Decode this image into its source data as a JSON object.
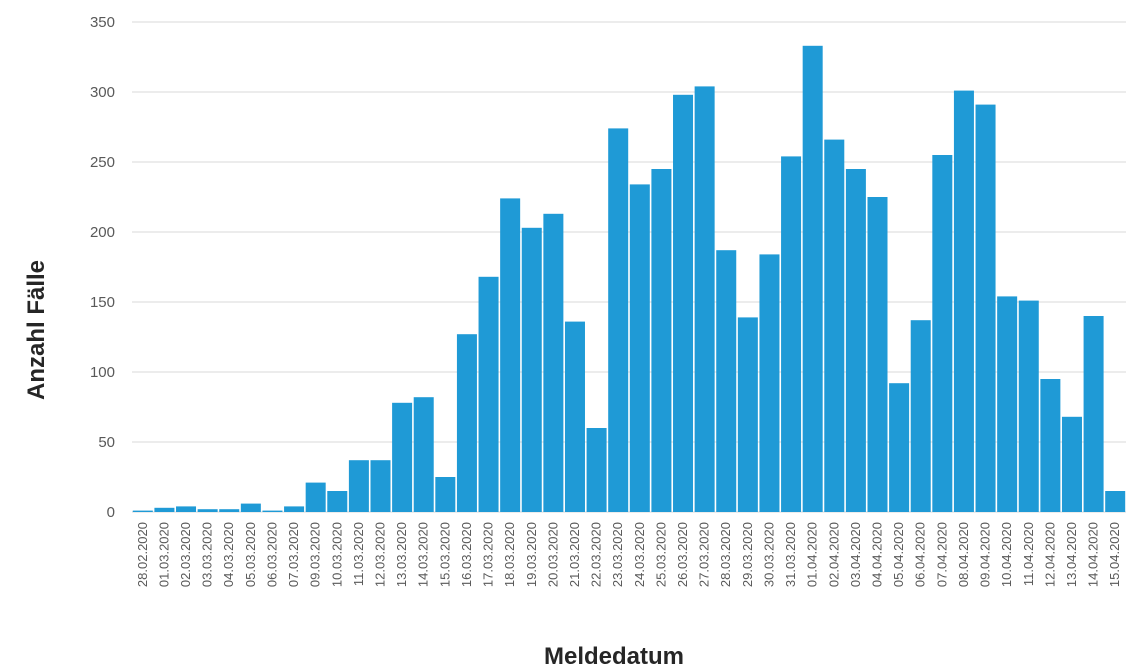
{
  "chart_data": {
    "type": "bar",
    "title": "",
    "xlabel": "Meldedatum",
    "ylabel": "Anzahl Fälle",
    "ylim": [
      0,
      350
    ],
    "yticks": [
      "0",
      "50",
      "100",
      "150",
      "200",
      "250",
      "300",
      "350"
    ],
    "grid": true,
    "bar_color": "#1f9ad6",
    "categories": [
      "28.02.2020",
      "01.03.2020",
      "02.03.2020",
      "03.03.2020",
      "04.03.2020",
      "05.03.2020",
      "06.03.2020",
      "07.03.2020",
      "09.03.2020",
      "10.03.2020",
      "11.03.2020",
      "12.03.2020",
      "13.03.2020",
      "14.03.2020",
      "15.03.2020",
      "16.03.2020",
      "17.03.2020",
      "18.03.2020",
      "19.03.2020",
      "20.03.2020",
      "21.03.2020",
      "22.03.2020",
      "23.03.2020",
      "24.03.2020",
      "25.03.2020",
      "26.03.2020",
      "27.03.2020",
      "28.03.2020",
      "29.03.2020",
      "30.03.2020",
      "31.03.2020",
      "01.04.2020",
      "02.04.2020",
      "03.04.2020",
      "04.04.2020",
      "05.04.2020",
      "06.04.2020",
      "07.04.2020",
      "08.04.2020",
      "09.04.2020",
      "10.04.2020",
      "11.04.2020",
      "12.04.2020",
      "13.04.2020",
      "14.04.2020",
      "15.04.2020"
    ],
    "values": [
      1,
      3,
      4,
      2,
      2,
      6,
      1,
      4,
      21,
      15,
      37,
      37,
      78,
      82,
      25,
      127,
      168,
      224,
      203,
      213,
      136,
      60,
      274,
      234,
      245,
      298,
      304,
      187,
      139,
      184,
      254,
      333,
      266,
      245,
      225,
      92,
      137,
      255,
      301,
      291,
      154,
      151,
      95,
      68,
      140,
      15
    ]
  }
}
